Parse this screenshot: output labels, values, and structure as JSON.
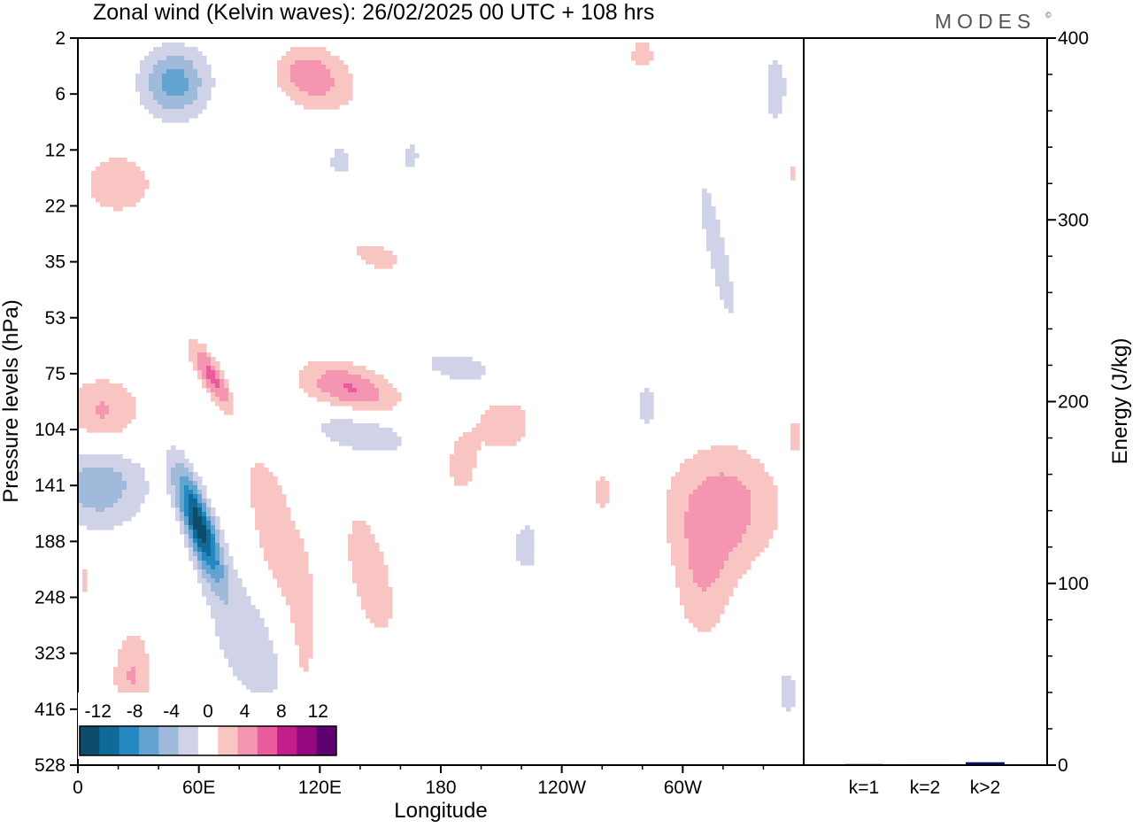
{
  "title": "Zonal wind (Kelvin waves):  26/02/2025  00 UTC  + 108 hrs",
  "brand": "MODES",
  "brand_mark": "©",
  "colors": {
    "neg": [
      "#0d4d6b",
      "#0f6a98",
      "#2389c0",
      "#62a3cf",
      "#9fbadb",
      "#d0d3e8"
    ],
    "zero": "#ffffff",
    "pos": [
      "#f9c5c2",
      "#f595b1",
      "#ea5b9b",
      "#c51c8c",
      "#95097e",
      "#5f0070"
    ],
    "bar": "#0a0f6e"
  },
  "chart_data": [
    {
      "type": "heatmap",
      "title": "Zonal wind (Kelvin waves):  26/02/2025  00 UTC  + 108 hrs",
      "xlabel": "Longitude",
      "ylabel": "Pressure levels (hPa)",
      "x_ticks": [
        "0",
        "60E",
        "120E",
        "180",
        "120W",
        "60W"
      ],
      "x_tick_values": [
        0,
        60,
        120,
        180,
        240,
        300
      ],
      "xlim": [
        0,
        360
      ],
      "y_ticks": [
        "2",
        "6",
        "12",
        "22",
        "35",
        "53",
        "75",
        "104",
        "141",
        "188",
        "248",
        "323",
        "416",
        "528"
      ],
      "colorbar": {
        "labels": [
          "-12",
          "-8",
          "-4",
          "0",
          "4",
          "8",
          "12"
        ],
        "levels": [
          -14,
          -12,
          -10,
          -8,
          -6,
          -4,
          -2,
          2,
          4,
          6,
          8,
          10,
          12,
          14
        ]
      },
      "features": [
        {
          "sign": -1,
          "lon": 60,
          "level": 8.7,
          "amp": 13,
          "sx": 5,
          "sy": 0.7,
          "tilt": 9
        },
        {
          "sign": -1,
          "lon": 80,
          "level": 6.6,
          "amp": 5,
          "sx": 5,
          "sy": 0.5,
          "tilt": 14
        },
        {
          "sign": -1,
          "lon": 85,
          "level": 10.8,
          "amp": 3,
          "sx": 16,
          "sy": 1.1,
          "tilt": 8
        },
        {
          "sign": -1,
          "lon": 10,
          "level": 8.0,
          "amp": 5.5,
          "sx": 17,
          "sy": 0.55,
          "tilt": 0
        },
        {
          "sign": -1,
          "lon": 140,
          "level": 7.0,
          "amp": 4,
          "sx": 18,
          "sy": 0.35,
          "tilt": 20
        },
        {
          "sign": -1,
          "lon": 190,
          "level": 5.9,
          "amp": 2.8,
          "sx": 17,
          "sy": 0.28,
          "tilt": 26
        },
        {
          "sign": -1,
          "lon": 48,
          "level": 0.8,
          "amp": 7,
          "sx": 12,
          "sy": 0.45,
          "tilt": 0
        },
        {
          "sign": -1,
          "lon": 92,
          "level": 0.3,
          "amp": 5,
          "sx": 13,
          "sy": 0.5,
          "tilt": 8
        },
        {
          "sign": -1,
          "lon": 317,
          "level": 3.8,
          "amp": 2.8,
          "sx": 5,
          "sy": 1.4,
          "tilt": 6
        },
        {
          "sign": -1,
          "lon": 222,
          "level": 9.1,
          "amp": 2.6,
          "sx": 7,
          "sy": 0.5,
          "tilt": 0
        },
        {
          "sign": -1,
          "lon": 282,
          "level": 6.6,
          "amp": 2.6,
          "sx": 5,
          "sy": 0.45,
          "tilt": 0
        },
        {
          "sign": -1,
          "lon": 346,
          "level": 0.9,
          "amp": 2.6,
          "sx": 6,
          "sy": 0.7,
          "tilt": 0
        },
        {
          "sign": -1,
          "lon": 130,
          "level": 2.2,
          "amp": 2.4,
          "sx": 7,
          "sy": 0.35,
          "tilt": 0
        },
        {
          "sign": -1,
          "lon": 165,
          "level": 2.1,
          "amp": 2.4,
          "sx": 5,
          "sy": 0.3,
          "tilt": 0
        },
        {
          "sign": -1,
          "lon": 352,
          "level": 11.7,
          "amp": 2.6,
          "sx": 5,
          "sy": 0.45,
          "tilt": 0
        },
        {
          "sign": 1,
          "lon": 70,
          "level": 6.2,
          "amp": 8.5,
          "sx": 5,
          "sy": 0.5,
          "tilt": 16
        },
        {
          "sign": 1,
          "lon": 108,
          "level": 0.6,
          "amp": 7,
          "sx": 17,
          "sy": 0.45,
          "tilt": 16
        },
        {
          "sign": 1,
          "lon": 135,
          "level": 6.3,
          "amp": 6.5,
          "sx": 16,
          "sy": 0.35,
          "tilt": 19
        },
        {
          "sign": 1,
          "lon": 20,
          "level": 2.6,
          "amp": 3,
          "sx": 16,
          "sy": 0.5,
          "tilt": 0
        },
        {
          "sign": 1,
          "lon": 12,
          "level": 6.7,
          "amp": 4.5,
          "sx": 14,
          "sy": 0.45,
          "tilt": 0
        },
        {
          "sign": 1,
          "lon": 97,
          "level": 8.8,
          "amp": 3.8,
          "sx": 8,
          "sy": 1.2,
          "tilt": 5
        },
        {
          "sign": 1,
          "lon": 145,
          "level": 9.6,
          "amp": 3.2,
          "sx": 9,
          "sy": 1.0,
          "tilt": 6
        },
        {
          "sign": 1,
          "lon": 212,
          "level": 6.9,
          "amp": 3.2,
          "sx": 11,
          "sy": 0.42,
          "tilt": 0
        },
        {
          "sign": 1,
          "lon": 190,
          "level": 7.6,
          "amp": 2.8,
          "sx": 7,
          "sy": 0.5,
          "tilt": 0
        },
        {
          "sign": 1,
          "lon": 320,
          "level": 8.4,
          "amp": 5.2,
          "sx": 20,
          "sy": 0.8,
          "tilt": 0
        },
        {
          "sign": 1,
          "lon": 310,
          "level": 9.8,
          "amp": 3.2,
          "sx": 10,
          "sy": 0.8,
          "tilt": 0
        },
        {
          "sign": 1,
          "lon": 27,
          "level": 11.4,
          "amp": 4.2,
          "sx": 7,
          "sy": 0.6,
          "tilt": 0
        },
        {
          "sign": 1,
          "lon": 112,
          "level": 10.8,
          "amp": 2.8,
          "sx": 5,
          "sy": 1.3,
          "tilt": 0
        },
        {
          "sign": 1,
          "lon": 148,
          "level": 3.9,
          "amp": 2.6,
          "sx": 12,
          "sy": 0.3,
          "tilt": 18
        },
        {
          "sign": 1,
          "lon": 260,
          "level": 8.1,
          "amp": 2.4,
          "sx": 5,
          "sy": 0.4,
          "tilt": 0
        },
        {
          "sign": 1,
          "lon": 280,
          "level": 0.3,
          "amp": 2.4,
          "sx": 8,
          "sy": 0.35,
          "tilt": 0
        },
        {
          "sign": 1,
          "lon": 3,
          "level": 9.7,
          "amp": 2.4,
          "sx": 3,
          "sy": 0.4,
          "tilt": 0
        },
        {
          "sign": 1,
          "lon": 356,
          "level": 7.1,
          "amp": 2.4,
          "sx": 3,
          "sy": 0.3,
          "tilt": 0
        },
        {
          "sign": 1,
          "lon": 354,
          "level": 2.4,
          "amp": 2.4,
          "sx": 3,
          "sy": 0.3,
          "tilt": 0
        }
      ]
    },
    {
      "type": "bar",
      "categories": [
        "k=1",
        "k=2",
        "k>2"
      ],
      "values": [
        0.6,
        0.5,
        1.6
      ],
      "ylabel": "Energy (J/kg)",
      "ylim": [
        0,
        400
      ],
      "y_ticks": [
        0,
        100,
        200,
        300,
        400
      ]
    }
  ]
}
